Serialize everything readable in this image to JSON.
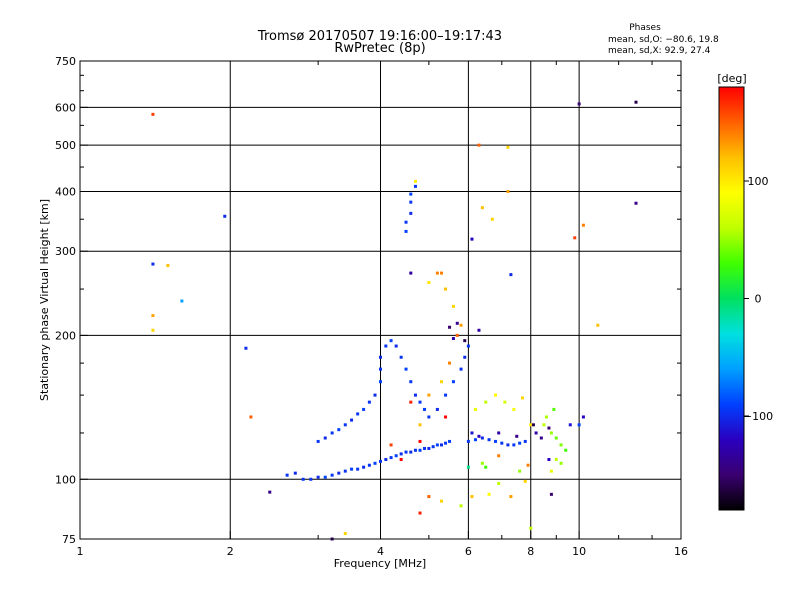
{
  "chart_data": {
    "type": "scatter",
    "title": "Tromsø 20170507 19:16:00–19:17:43",
    "subtitle": "RwPretec (8p)",
    "xlabel": "Frequency [MHz]",
    "ylabel": "Stationary phase Virtual Height [km]",
    "x_scale": "log",
    "y_scale": "log",
    "xlim": [
      1,
      16
    ],
    "ylim": [
      75,
      750
    ],
    "x_ticks": [
      1,
      2,
      4,
      6,
      8,
      10,
      16
    ],
    "x_tick_labels": [
      "1",
      "2",
      "4",
      "6",
      "8",
      "10",
      "16"
    ],
    "y_ticks": [
      75,
      100,
      200,
      300,
      400,
      500,
      600,
      750
    ],
    "y_tick_labels": [
      "75",
      "100",
      "200",
      "300",
      "400",
      "500",
      "600",
      "750"
    ],
    "grid": true,
    "stats": {
      "heading": "Phases",
      "line_o": "mean, sd,O: −80.6, 19.8",
      "line_x": "mean, sd,X:  92.9, 27.4"
    },
    "colorbar": {
      "label": "[deg]",
      "min": -180,
      "max": 180,
      "ticks": [
        100,
        0,
        -100
      ],
      "tick_labels": [
        "100",
        "0",
        "−100"
      ],
      "colors": [
        "#000000",
        "#3a0070",
        "#2a00c0",
        "#0040ff",
        "#00a0ff",
        "#00e0e0",
        "#00e060",
        "#40ff00",
        "#c0ff00",
        "#ffff00",
        "#ffc000",
        "#ff6000",
        "#ff0000"
      ]
    },
    "points": [
      [
        2.6,
        102,
        -95
      ],
      [
        2.7,
        103,
        -100
      ],
      [
        2.8,
        100,
        -95
      ],
      [
        2.9,
        100,
        -95
      ],
      [
        3.0,
        101,
        -100
      ],
      [
        3.1,
        101,
        -90
      ],
      [
        3.2,
        102,
        -95
      ],
      [
        3.3,
        103,
        -100
      ],
      [
        3.4,
        104,
        -95
      ],
      [
        3.5,
        105,
        -90
      ],
      [
        3.6,
        105,
        -95
      ],
      [
        3.7,
        106,
        -100
      ],
      [
        3.8,
        107,
        -95
      ],
      [
        3.9,
        108,
        -90
      ],
      [
        4.0,
        109,
        -95
      ],
      [
        4.1,
        110,
        -100
      ],
      [
        4.2,
        111,
        -95
      ],
      [
        4.3,
        112,
        -90
      ],
      [
        4.4,
        113,
        -100
      ],
      [
        4.5,
        114,
        -95
      ],
      [
        4.6,
        114,
        -100
      ],
      [
        4.7,
        115,
        -95
      ],
      [
        4.8,
        115,
        -90
      ],
      [
        4.9,
        116,
        -95
      ],
      [
        5.0,
        116,
        -100
      ],
      [
        5.1,
        117,
        -95
      ],
      [
        5.2,
        118,
        -90
      ],
      [
        5.3,
        118,
        -100
      ],
      [
        5.4,
        119,
        -95
      ],
      [
        5.5,
        120,
        -90
      ],
      [
        3.0,
        120,
        -95
      ],
      [
        3.1,
        122,
        -100
      ],
      [
        3.2,
        125,
        -95
      ],
      [
        3.3,
        127,
        -90
      ],
      [
        3.4,
        130,
        -95
      ],
      [
        3.5,
        133,
        -100
      ],
      [
        3.6,
        137,
        -95
      ],
      [
        3.7,
        140,
        -90
      ],
      [
        3.8,
        145,
        -95
      ],
      [
        3.9,
        150,
        -100
      ],
      [
        4.0,
        160,
        -90
      ],
      [
        4.0,
        170,
        -95
      ],
      [
        4.0,
        180,
        -100
      ],
      [
        4.1,
        190,
        -95
      ],
      [
        4.2,
        195,
        -90
      ],
      [
        4.3,
        190,
        -100
      ],
      [
        4.4,
        180,
        -95
      ],
      [
        4.5,
        170,
        -90
      ],
      [
        4.6,
        160,
        -95
      ],
      [
        4.7,
        150,
        -100
      ],
      [
        4.8,
        145,
        -95
      ],
      [
        4.9,
        140,
        -90
      ],
      [
        5.0,
        135,
        -95
      ],
      [
        5.2,
        140,
        -100
      ],
      [
        5.4,
        150,
        -95
      ],
      [
        5.6,
        160,
        -90
      ],
      [
        5.8,
        170,
        -95
      ],
      [
        5.9,
        180,
        -100
      ],
      [
        6.0,
        190,
        -95
      ],
      [
        4.5,
        330,
        -90
      ],
      [
        4.5,
        345,
        -95
      ],
      [
        4.6,
        360,
        -100
      ],
      [
        4.6,
        380,
        -95
      ],
      [
        4.6,
        395,
        -90
      ],
      [
        4.7,
        410,
        -95
      ],
      [
        4.7,
        420,
        100
      ],
      [
        4.8,
        130,
        120
      ],
      [
        5.0,
        150,
        130
      ],
      [
        5.3,
        160,
        110
      ],
      [
        5.5,
        175,
        140
      ],
      [
        5.7,
        200,
        150
      ],
      [
        5.8,
        210,
        130
      ],
      [
        5.6,
        230,
        110
      ],
      [
        5.4,
        250,
        120
      ],
      [
        5.2,
        270,
        140
      ],
      [
        6.0,
        120,
        -95
      ],
      [
        6.2,
        121,
        -90
      ],
      [
        6.4,
        122,
        -100
      ],
      [
        6.6,
        121,
        -95
      ],
      [
        6.8,
        120,
        -90
      ],
      [
        7.0,
        119,
        -95
      ],
      [
        7.2,
        118,
        -100
      ],
      [
        7.4,
        118,
        -95
      ],
      [
        7.6,
        119,
        -90
      ],
      [
        7.8,
        120,
        -95
      ],
      [
        6.1,
        125,
        -110
      ],
      [
        6.3,
        123,
        -120
      ],
      [
        6.9,
        125,
        -130
      ],
      [
        7.5,
        123,
        -140
      ],
      [
        6.2,
        140,
        80
      ],
      [
        6.5,
        145,
        60
      ],
      [
        6.8,
        150,
        90
      ],
      [
        7.1,
        145,
        70
      ],
      [
        7.4,
        140,
        85
      ],
      [
        7.7,
        148,
        110
      ],
      [
        8.0,
        130,
        100
      ],
      [
        8.5,
        130,
        60
      ],
      [
        8.8,
        125,
        50
      ],
      [
        9.0,
        122,
        40
      ],
      [
        9.2,
        118,
        45
      ],
      [
        9.4,
        115,
        30
      ],
      [
        9.0,
        110,
        60
      ],
      [
        9.2,
        108,
        50
      ],
      [
        8.6,
        135,
        55
      ],
      [
        8.9,
        140,
        35
      ],
      [
        8.2,
        125,
        -130
      ],
      [
        8.4,
        122,
        -140
      ],
      [
        8.7,
        128,
        -150
      ],
      [
        8.1,
        130,
        -160
      ],
      [
        9.6,
        130,
        -110
      ],
      [
        10.0,
        130,
        -90
      ],
      [
        8.7,
        110,
        -120
      ],
      [
        5.5,
        208,
        -150
      ],
      [
        5.7,
        212,
        -140
      ],
      [
        5.6,
        197,
        -130
      ],
      [
        5.9,
        195,
        -160
      ],
      [
        6.3,
        205,
        -130
      ],
      [
        6.1,
        318,
        -120
      ],
      [
        7.3,
        268,
        -100
      ],
      [
        6.4,
        370,
        120
      ],
      [
        6.7,
        350,
        110
      ],
      [
        5.3,
        270,
        140
      ],
      [
        7.2,
        400,
        130
      ],
      [
        6.3,
        500,
        150
      ],
      [
        7.2,
        495,
        110
      ],
      [
        9.8,
        320,
        160
      ],
      [
        10.2,
        340,
        140
      ],
      [
        10.9,
        210,
        120
      ],
      [
        1.4,
        282,
        -100
      ],
      [
        1.5,
        280,
        120
      ],
      [
        1.4,
        220,
        130
      ],
      [
        1.4,
        205,
        110
      ],
      [
        1.6,
        236,
        -60
      ],
      [
        1.4,
        580,
        160
      ],
      [
        1.95,
        355,
        -100
      ],
      [
        2.15,
        188,
        -100
      ],
      [
        2.2,
        135,
        150
      ],
      [
        2.4,
        94,
        -140
      ],
      [
        3.2,
        75,
        -150
      ],
      [
        3.4,
        77,
        110
      ],
      [
        10.0,
        610,
        -150
      ],
      [
        13.0,
        615,
        -160
      ],
      [
        13.0,
        378,
        -140
      ],
      [
        10.2,
        135,
        -120
      ],
      [
        5.0,
        92,
        150
      ],
      [
        4.8,
        85,
        170
      ],
      [
        5.3,
        90,
        110
      ],
      [
        5.8,
        88,
        60
      ],
      [
        6.1,
        92,
        120
      ],
      [
        6.6,
        93,
        90
      ],
      [
        6.9,
        98,
        60
      ],
      [
        7.3,
        92,
        130
      ],
      [
        7.8,
        99,
        110
      ],
      [
        8.0,
        79,
        60
      ],
      [
        8.8,
        93,
        -150
      ],
      [
        8.8,
        104,
        80
      ],
      [
        6.0,
        106,
        -10
      ],
      [
        6.5,
        106,
        30
      ],
      [
        7.6,
        104,
        50
      ],
      [
        7.9,
        107,
        140
      ],
      [
        6.4,
        108,
        50
      ],
      [
        6.9,
        112,
        140
      ],
      [
        4.4,
        110,
        180
      ],
      [
        4.8,
        120,
        180
      ],
      [
        5.4,
        135,
        180
      ],
      [
        4.6,
        145,
        170
      ],
      [
        4.2,
        118,
        160
      ],
      [
        4.6,
        270,
        -130
      ],
      [
        5.0,
        258,
        100
      ]
    ]
  }
}
